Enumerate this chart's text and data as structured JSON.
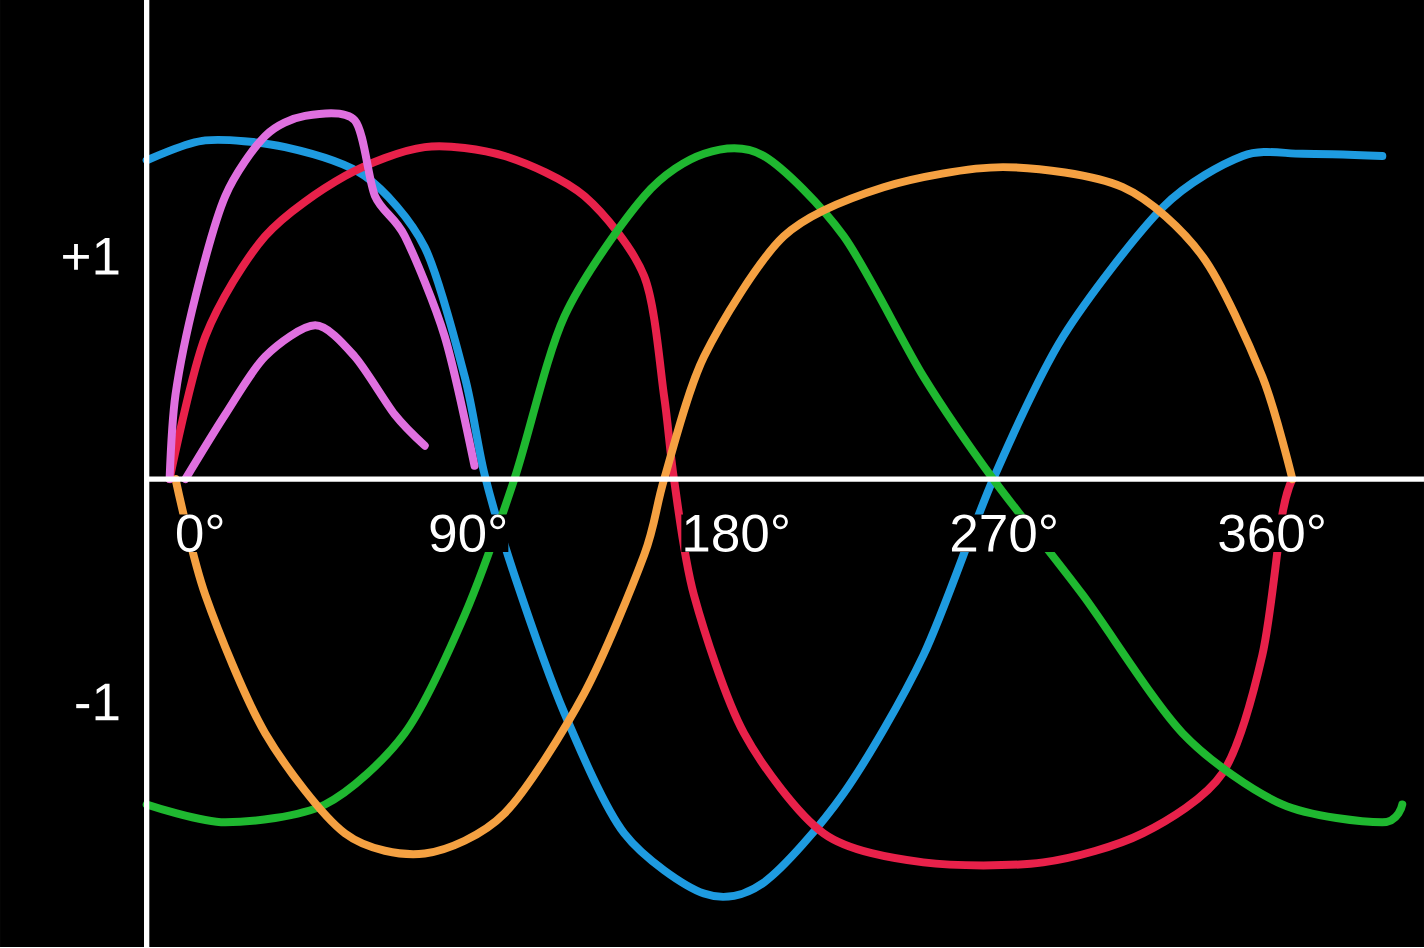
{
  "chart_data": {
    "type": "line",
    "xlim": [
      -18,
      411
    ],
    "ylim": [
      -2.1,
      2.15
    ],
    "xticks": [
      {
        "value": 0,
        "label": "0°"
      },
      {
        "value": 90,
        "label": "90°"
      },
      {
        "value": 180,
        "label": "180°"
      },
      {
        "value": 270,
        "label": "270°"
      },
      {
        "value": 360,
        "label": "360°"
      }
    ],
    "yticks": [
      {
        "value": 1,
        "label": "+1"
      },
      {
        "value": -1,
        "label": "-1"
      }
    ],
    "marker": "none",
    "line_style": "solid",
    "series": [
      {
        "color": "#1e9be0",
        "x": [
          -18,
          1.7,
          28.5,
          55.3,
          75.4,
          88.8,
          95.5,
          105.5,
          122.3,
          142.4,
          169.2,
          189.3,
          216.1,
          242.9,
          266.3,
          289.8,
          323.3,
          350.1,
          370.2,
          397
        ],
        "values": [
          1.43,
          1.52,
          1.49,
          1.36,
          1.04,
          0.46,
          0.02,
          -0.43,
          -1.05,
          -1.59,
          -1.86,
          -1.81,
          -1.41,
          -0.79,
          0,
          0.64,
          1.22,
          1.45,
          1.46,
          1.45
        ]
      },
      {
        "color": "#e8214a",
        "x": [
          -10.3,
          1.7,
          21.8,
          48.6,
          75.4,
          102.2,
          129,
          149.1,
          155.8,
          159.1,
          165.8,
          182.6,
          209.4,
          242.9,
          283.1,
          316.5,
          343.3,
          356.7,
          363.4,
          366.8
        ],
        "values": [
          0,
          0.64,
          1.09,
          1.36,
          1.49,
          1.45,
          1.27,
          0.91,
          0.37,
          0,
          -0.52,
          -1.14,
          -1.59,
          -1.72,
          -1.72,
          -1.59,
          -1.32,
          -0.79,
          -0.16,
          0
        ]
      },
      {
        "color": "#1fb830",
        "x": [
          -18,
          8.4,
          41.9,
          68.7,
          88.8,
          105.5,
          122.3,
          149.1,
          169.2,
          189.3,
          216.1,
          242.9,
          266.3,
          296.4,
          329.9,
          363.4,
          397,
          403.7
        ],
        "values": [
          -1.46,
          -1.54,
          -1.46,
          -1.14,
          -0.61,
          0,
          0.73,
          1.27,
          1.46,
          1.45,
          1.09,
          0.46,
          0,
          -0.52,
          -1.14,
          -1.46,
          -1.54,
          -1.46
        ]
      },
      {
        "color": "#f5a142",
        "x": [
          -8.3,
          1.7,
          21.8,
          48.6,
          75.4,
          102.2,
          129,
          149.1,
          155.8,
          169.2,
          196,
          229.5,
          269.6,
          309.8,
          336.6,
          356.7,
          366.8
        ],
        "values": [
          0,
          -0.52,
          -1.14,
          -1.59,
          -1.68,
          -1.5,
          -0.96,
          -0.34,
          0,
          0.55,
          1.09,
          1.31,
          1.4,
          1.31,
          1.0,
          0.46,
          0
        ]
      },
      {
        "color": "#e070e0",
        "x": [
          -10.3,
          -8.3,
          -1.6,
          8.4,
          21.8,
          35.2,
          51.9,
          58.7,
          68.7,
          82.1,
          92.1
        ],
        "values": [
          0,
          0.38,
          0.82,
          1.27,
          1.54,
          1.63,
          1.61,
          1.27,
          1.09,
          0.64,
          0.06
        ]
      },
      {
        "color": "#e070e0",
        "x": [
          -5,
          8.4,
          21.8,
          38.6,
          51.9,
          65.3,
          75.4
        ],
        "values": [
          0,
          0.29,
          0.55,
          0.69,
          0.55,
          0.29,
          0.15
        ]
      }
    ]
  }
}
